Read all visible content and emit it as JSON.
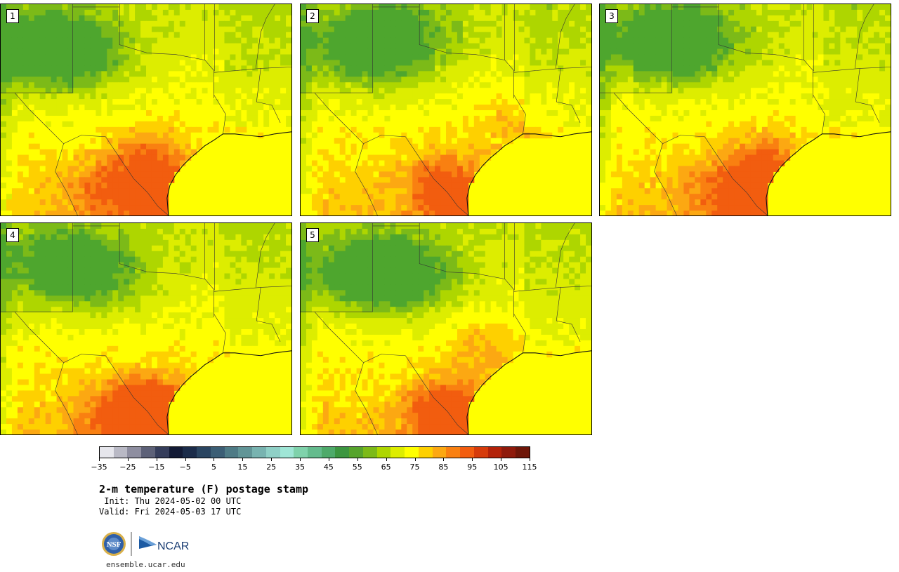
{
  "stamps": [
    {
      "label": "1",
      "hot": [
        [
          215,
          225,
          0.95
        ],
        [
          150,
          265,
          0.7
        ],
        [
          230,
          290,
          0.85
        ]
      ],
      "cool": [
        [
          95,
          75,
          1.0
        ],
        [
          55,
          60,
          0.8
        ]
      ]
    },
    {
      "label": "2",
      "hot": [
        [
          200,
          250,
          0.7
        ],
        [
          230,
          290,
          0.8
        ],
        [
          300,
          170,
          0.4
        ]
      ],
      "cool": [
        [
          95,
          70,
          1.0
        ],
        [
          135,
          45,
          0.7
        ]
      ]
    },
    {
      "label": "3",
      "hot": [
        [
          235,
          225,
          0.9
        ],
        [
          225,
          285,
          0.95
        ],
        [
          160,
          265,
          0.5
        ]
      ],
      "cool": [
        [
          85,
          55,
          1.0
        ],
        [
          130,
          60,
          0.7
        ]
      ]
    },
    {
      "label": "4",
      "hot": [
        [
          215,
          260,
          0.9
        ],
        [
          230,
          290,
          0.95
        ],
        [
          160,
          275,
          0.7
        ]
      ],
      "cool": [
        [
          85,
          60,
          1.0
        ],
        [
          140,
          80,
          0.6
        ]
      ]
    },
    {
      "label": "5",
      "hot": [
        [
          200,
          265,
          0.7
        ],
        [
          225,
          285,
          0.9
        ],
        [
          260,
          180,
          0.5
        ]
      ],
      "cool": [
        [
          95,
          70,
          1.0
        ],
        [
          145,
          80,
          0.9
        ]
      ]
    }
  ],
  "colorbar": {
    "colors": [
      "#e6e6ec",
      "#b9b9c5",
      "#8e8ea0",
      "#5d6178",
      "#353d5b",
      "#121a35",
      "#1b2c4a",
      "#2a4561",
      "#3b5e75",
      "#4e7b86",
      "#619597",
      "#78b3b0",
      "#8fd0c6",
      "#9fe6d6",
      "#7fd2ab",
      "#64bb8d",
      "#4eaa6a",
      "#3c9640",
      "#56a42c",
      "#7cba18",
      "#aed600",
      "#dded00",
      "#ffff00",
      "#fed000",
      "#fca812",
      "#f98011",
      "#f25d0f",
      "#d63b0b",
      "#b32209",
      "#8f1a0b",
      "#6e1608"
    ],
    "ticks": [
      "−35",
      "−25",
      "−15",
      "−5",
      "5",
      "15",
      "25",
      "35",
      "45",
      "55",
      "65",
      "75",
      "85",
      "95",
      "105",
      "115"
    ]
  },
  "title": "2-m temperature (F) postage stamp",
  "init": " Init: Thu 2024-05-02 00 UTC",
  "valid": "Valid: Fri 2024-05-03 17 UTC",
  "logos": {
    "nsf": "NSF",
    "ncar": "NCAR"
  },
  "footer_url": "ensemble.ucar.edu"
}
